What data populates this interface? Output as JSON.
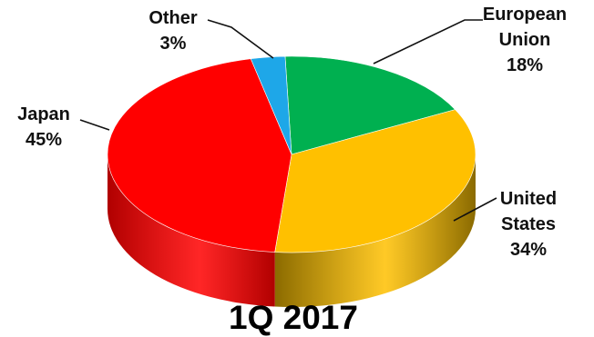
{
  "chart_data": {
    "type": "pie",
    "style": "3d",
    "title": "1Q 2017",
    "slices": [
      {
        "name": "European Union",
        "name_lines": [
          "European",
          "Union"
        ],
        "value": 18,
        "value_label": "18%",
        "color": "#00b050",
        "side_color": "#007a38"
      },
      {
        "name": "United States",
        "name_lines": [
          "United",
          "States"
        ],
        "value": 34,
        "value_label": "34%",
        "color": "#ffc000",
        "side_color": "#8a6a00"
      },
      {
        "name": "Japan",
        "name_lines": [
          "Japan"
        ],
        "value": 45,
        "value_label": "45%",
        "color": "#ff0000",
        "side_color": "#b00000"
      },
      {
        "name": "Other",
        "name_lines": [
          "Other"
        ],
        "value": 3,
        "value_label": "3%",
        "color": "#1ea7e8",
        "side_color": "#12709e"
      }
    ],
    "legend": "none",
    "labels": "outside with leader lines"
  }
}
